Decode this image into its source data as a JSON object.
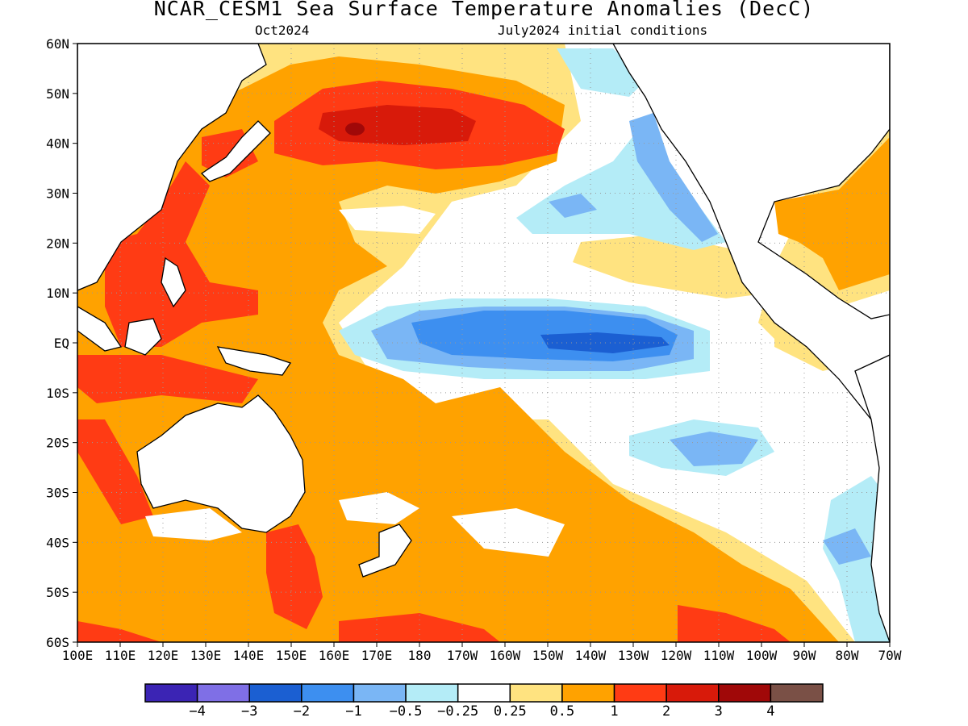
{
  "title": "NCAR_CESM1 Sea Surface Temperature Anomalies (DecC)",
  "subtitle_left": "Oct2024",
  "subtitle_right": "July2024 initial conditions",
  "x_ticks": [
    "100E",
    "110E",
    "120E",
    "130E",
    "140E",
    "150E",
    "160E",
    "170E",
    "180",
    "170W",
    "160W",
    "150W",
    "140W",
    "130W",
    "120W",
    "110W",
    "100W",
    "90W",
    "80W",
    "70W"
  ],
  "y_ticks": [
    "60N",
    "50N",
    "40N",
    "30N",
    "20N",
    "10N",
    "EQ",
    "10S",
    "20S",
    "30S",
    "40S",
    "50S",
    "60S"
  ],
  "colorbar": {
    "colors": [
      "#3b24b4",
      "#7f6fe6",
      "#1b5fd2",
      "#3d8ff0",
      "#7ab6f5",
      "#b4ecf7",
      "#ffffff",
      "#ffe380",
      "#ffa200",
      "#ff3b14",
      "#d81a0a",
      "#a00808",
      "#7a5046"
    ],
    "labels": [
      "−4",
      "−3",
      "−2",
      "−1",
      "−0.5",
      "−0.25",
      "0.25",
      "0.5",
      "1",
      "2",
      "3",
      "4"
    ]
  },
  "colors": {
    "frame": "#000000",
    "land_outline": "#000000",
    "grid": "#999999"
  }
}
